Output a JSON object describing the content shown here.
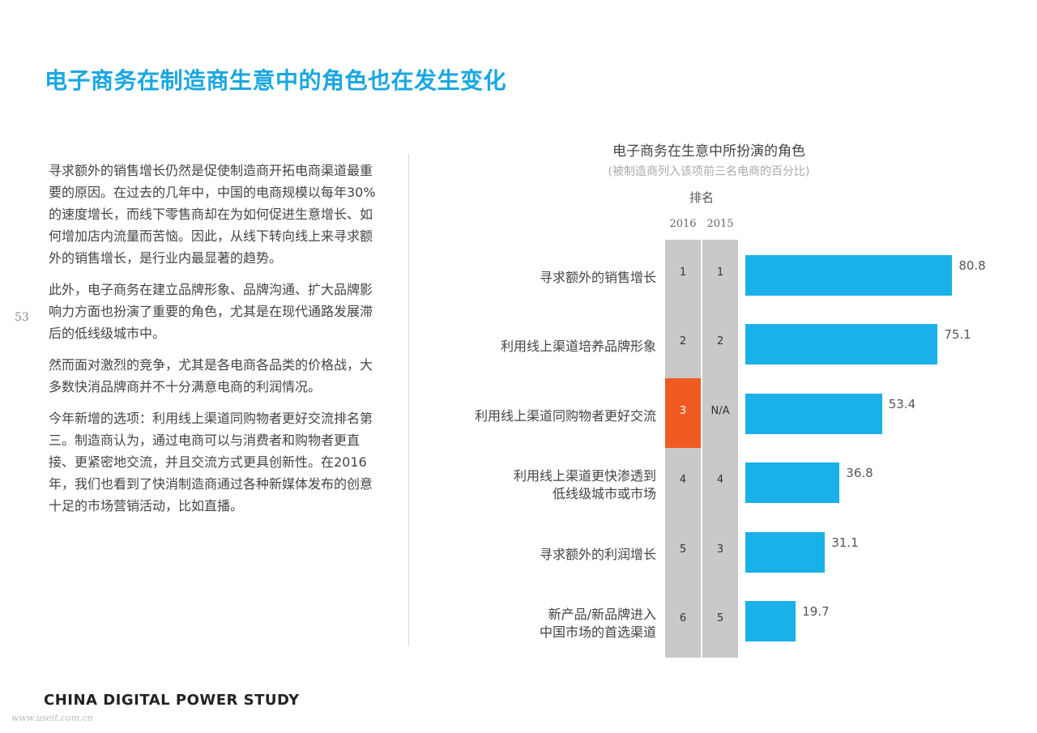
{
  "header": {
    "title": "电子商务在制造商生意中的角色也在发生变化"
  },
  "page_number": "53",
  "body_paragraphs": [
    "寻求额外的销售增长仍然是促使制造商开拓电商渠道最重要的原因。在过去的几年中，中国的电商规模以每年30%的速度增长，而线下零售商却在为如何促进生意增长、如何增加店内流量而苦恼。因此，从线下转向线上来寻求额外的销售增长，是行业内最显著的趋势。",
    "此外，电子商务在建立品牌形象、品牌沟通、扩大品牌影响力方面也扮演了重要的角色，尤其是在现代通路发展滞后的低线级城市中。",
    "然而面对激烈的竞争，尤其是各电商各品类的价格战，大多数快消品牌商并不十分满意电商的利润情况。",
    "今年新增的选项：利用线上渠道同购物者更好交流排名第三。制造商认为，通过电商可以与消费者和购物者更直接、更紧密地交流，并且交流方式更具创新性。在2016年，我们也看到了快消制造商通过各种新媒体发布的创意十足的市场营销活动，比如直播。"
  ],
  "chart_data": {
    "type": "bar",
    "orientation": "horizontal",
    "title": "电子商务在生意中所扮演的角色",
    "subtitle": "(被制造商列入该项前三名电商的百分比)",
    "rank_header": "排名",
    "rank_years": [
      "2016",
      "2015"
    ],
    "categories": [
      "寻求额外的销售增长",
      "利用线上渠道培养品牌形象",
      "利用线上渠道同购物者更好交流",
      "利用线上渠道更快渗透到\n低线级城市或市场",
      "寻求额外的利润增长",
      "新产品/新品牌进入\n中国市场的首选渠道"
    ],
    "values": [
      80.8,
      75.1,
      53.4,
      36.8,
      31.1,
      19.7
    ],
    "value_labels": [
      "80.8",
      "75.1",
      "53.4",
      "36.8",
      "31.1",
      "19.7"
    ],
    "rank_2016": [
      "1",
      "2",
      "3",
      "4",
      "5",
      "6"
    ],
    "rank_2015": [
      "1",
      "2",
      "N/A",
      "4",
      "3",
      "5"
    ],
    "highlight_rank_2016_index": 2,
    "xlim": [
      0,
      100
    ],
    "grid": false,
    "colors": {
      "bar": "#1ab0e8",
      "highlight": "#f05a23",
      "rank_column": "#c9c9c9",
      "title": "#1aa7e0"
    }
  },
  "footer": {
    "brand": "CHINA DIGITAL POWER STUDY",
    "watermark": "www.useit.com.cn"
  }
}
